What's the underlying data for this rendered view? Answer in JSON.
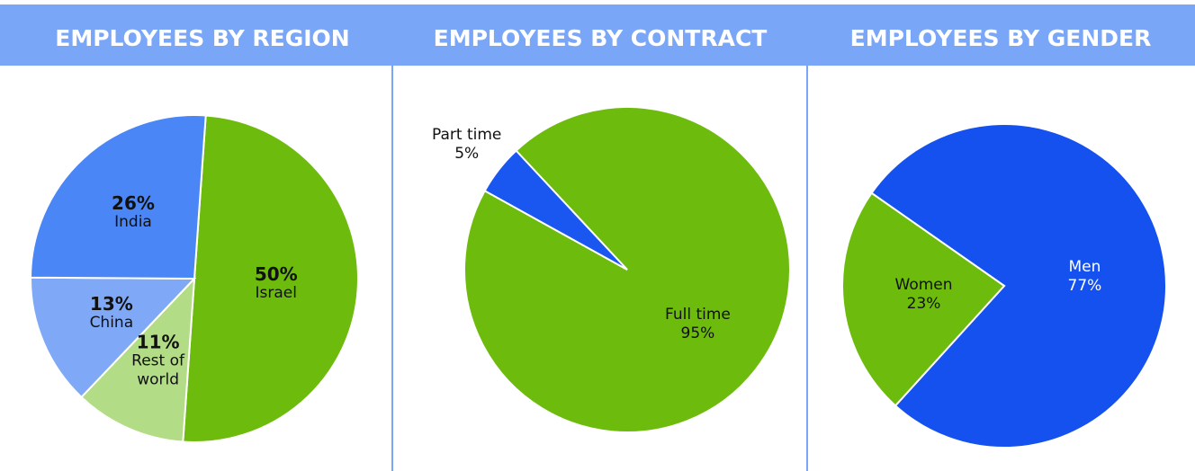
{
  "chart_data": [
    {
      "type": "pie",
      "title": "EMPLOYEES BY REGION",
      "categories": [
        "Israel",
        "Rest of world",
        "China",
        "India"
      ],
      "values": [
        50,
        11,
        13,
        26
      ],
      "value_labels": [
        "50%",
        "11%",
        "13%",
        "26%"
      ],
      "colors": [
        "#6cbb0d",
        "#b3dc86",
        "#7fa9f7",
        "#4a86f5"
      ],
      "label_colors": [
        "#111111",
        "#111111",
        "#111111",
        "#111111"
      ]
    },
    {
      "type": "pie",
      "title": "EMPLOYEES BY CONTRACT",
      "categories": [
        "Full time",
        "Part time"
      ],
      "values": [
        95,
        5
      ],
      "value_labels": [
        "95%",
        "5%"
      ],
      "colors": [
        "#6cbb0d",
        "#1a56f0"
      ],
      "label_colors": [
        "#111111",
        "#111111"
      ]
    },
    {
      "type": "pie",
      "title": "EMPLOYEES BY GENDER",
      "categories": [
        "Men",
        "Women"
      ],
      "values": [
        77,
        23
      ],
      "value_labels": [
        "77%",
        "23%"
      ],
      "colors": [
        "#1551ee",
        "#6cbb0d"
      ],
      "label_colors": [
        "#ffffff",
        "#111111"
      ]
    }
  ]
}
